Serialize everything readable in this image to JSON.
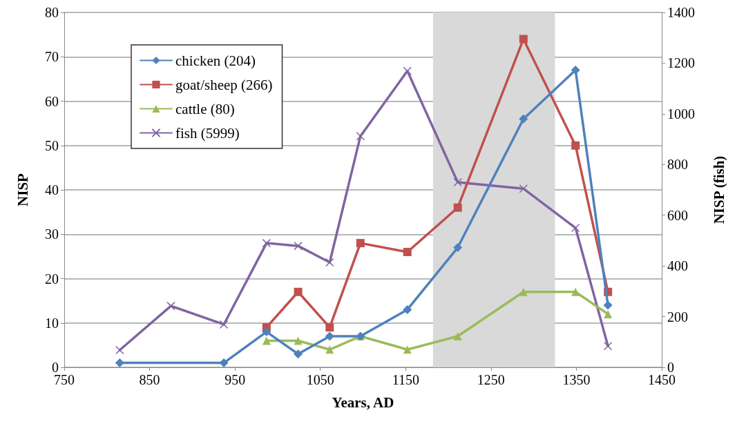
{
  "chart_data": {
    "type": "line",
    "xlabel": "Years, AD",
    "ylabel": "NISP",
    "y2label": "NISP (fish)",
    "xlim": [
      750,
      1450
    ],
    "xticks": [
      750,
      850,
      950,
      1050,
      1150,
      1250,
      1350,
      1450
    ],
    "ylim": [
      0,
      80
    ],
    "yticks": [
      0,
      10,
      20,
      30,
      40,
      50,
      60,
      70,
      80
    ],
    "y2lim": [
      0,
      1400
    ],
    "y2ticks": [
      0,
      200,
      400,
      600,
      800,
      1000,
      1200,
      1400
    ],
    "grid": "y",
    "legend": "top left",
    "line_style": "solid",
    "bands": [
      {
        "axis": "x",
        "from": 1182,
        "to": 1325,
        "color": "#d9d9d9"
      }
    ],
    "series": [
      {
        "name": "chicken (204)",
        "color": "#4f81bd",
        "marker": "diamond",
        "x": [
          815,
          937,
          987,
          1024,
          1061,
          1097,
          1152,
          1211,
          1288,
          1349,
          1387
        ],
        "values": [
          1,
          1,
          8,
          3,
          7,
          7,
          13,
          27,
          56,
          67,
          14
        ]
      },
      {
        "name": "goat/sheep (266)",
        "color": "#c0504d",
        "marker": "square",
        "x": [
          987,
          1024,
          1061,
          1097,
          1152,
          1211,
          1288,
          1349,
          1387
        ],
        "values": [
          9,
          17,
          9,
          28,
          26,
          36,
          74,
          50,
          17
        ]
      },
      {
        "name": "cattle (80)",
        "color": "#9bbb59",
        "marker": "triangle",
        "x": [
          987,
          1024,
          1061,
          1097,
          1152,
          1211,
          1288,
          1349,
          1387
        ],
        "values": [
          6,
          6,
          4,
          7,
          4,
          7,
          17,
          17,
          12
        ]
      },
      {
        "name": "fish (5999)",
        "color": "#8064a2",
        "marker": "cross",
        "axis": "y2",
        "x": [
          815,
          875,
          937,
          987,
          1024,
          1061,
          1097,
          1152,
          1211,
          1288,
          1349,
          1387
        ],
        "values": [
          68,
          242,
          169,
          490,
          479,
          414,
          912,
          1169,
          730,
          705,
          550,
          84
        ]
      }
    ]
  }
}
